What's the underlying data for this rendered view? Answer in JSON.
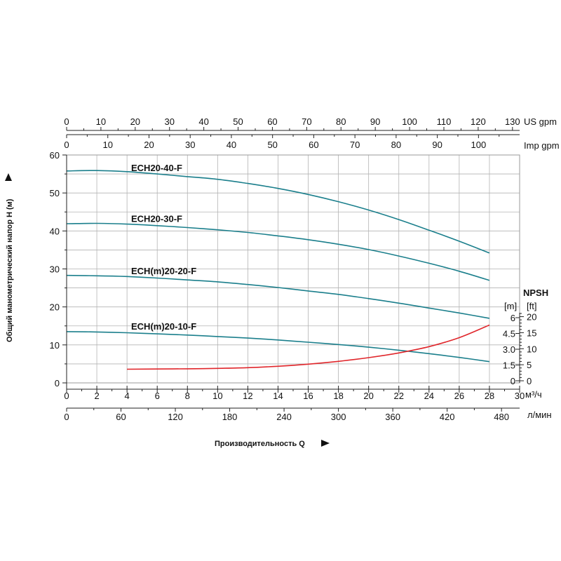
{
  "axes": {
    "us_gpm": {
      "label": "US gpm",
      "ticks": [
        0,
        10,
        20,
        30,
        40,
        50,
        60,
        70,
        80,
        90,
        100,
        110,
        120,
        130
      ]
    },
    "imp_gpm": {
      "label": "Imp gpm",
      "ticks": [
        0,
        10,
        20,
        30,
        40,
        50,
        60,
        70,
        80,
        90,
        100
      ]
    },
    "flow_m3h": {
      "label": "м³/ч",
      "ticks": [
        0,
        2,
        4,
        6,
        8,
        10,
        12,
        14,
        16,
        18,
        20,
        22,
        24,
        26,
        28,
        30
      ]
    },
    "flow_lmin": {
      "label": "л/мин",
      "ticks": [
        0,
        60,
        120,
        180,
        240,
        300,
        360,
        420,
        480
      ]
    },
    "head_m": {
      "label": "Общий манометрический напор H (м)",
      "ticks": [
        0,
        10,
        20,
        30,
        40,
        50,
        60
      ]
    },
    "x_title": "Производительность Q",
    "npsh": {
      "title": "NPSH",
      "unit_m": "[m]",
      "unit_ft": "[ft]",
      "ticks_m": [
        "0",
        "1.5",
        "3.0",
        "4.5",
        "6"
      ],
      "ticks_ft": [
        "0",
        "5",
        "10",
        "15",
        "20"
      ]
    }
  },
  "chart_data": {
    "type": "line",
    "xlabel": "Производительность Q",
    "ylabel": "Общий манометрический напор H (м)",
    "x_unit": "м³/ч",
    "xlim": [
      0,
      30
    ],
    "ylim": [
      0,
      60
    ],
    "grid": true,
    "series": [
      {
        "name": "ECH20-40-F",
        "color": "#1b7f8c",
        "x": [
          0,
          2,
          4,
          6,
          8,
          10,
          12,
          14,
          16,
          18,
          20,
          22,
          24,
          26,
          28
        ],
        "y": [
          55.8,
          55.9,
          55.6,
          55.0,
          54.3,
          53.6,
          52.5,
          51.2,
          49.6,
          47.7,
          45.5,
          43.0,
          40.2,
          37.3,
          34.2
        ]
      },
      {
        "name": "ECH20-30-F",
        "color": "#1b7f8c",
        "x": [
          0,
          2,
          4,
          6,
          8,
          10,
          12,
          14,
          16,
          18,
          20,
          22,
          24,
          26,
          28
        ],
        "y": [
          41.9,
          42.0,
          41.8,
          41.4,
          40.9,
          40.3,
          39.6,
          38.7,
          37.7,
          36.5,
          35.1,
          33.4,
          31.5,
          29.4,
          27.0
        ]
      },
      {
        "name": "ECH(m)20-20-F",
        "color": "#1b7f8c",
        "x": [
          0,
          2,
          4,
          6,
          8,
          10,
          12,
          14,
          16,
          18,
          20,
          22,
          24,
          26,
          28
        ],
        "y": [
          28.3,
          28.2,
          28.0,
          27.6,
          27.1,
          26.6,
          25.9,
          25.1,
          24.2,
          23.3,
          22.2,
          21.0,
          19.7,
          18.4,
          17.0
        ]
      },
      {
        "name": "ECH(m)20-10-F",
        "color": "#1b7f8c",
        "x": [
          0,
          2,
          4,
          6,
          8,
          10,
          12,
          14,
          16,
          18,
          20,
          22,
          24,
          26,
          28
        ],
        "y": [
          13.5,
          13.4,
          13.2,
          12.9,
          12.6,
          12.2,
          11.8,
          11.3,
          10.7,
          10.1,
          9.4,
          8.6,
          7.7,
          6.7,
          5.6
        ]
      },
      {
        "name": "NPSH",
        "color": "#e0262b",
        "axis": "npsh_m",
        "x": [
          4,
          6,
          8,
          10,
          12,
          14,
          16,
          18,
          20,
          22,
          24,
          26,
          28
        ],
        "y": [
          1.1,
          1.12,
          1.14,
          1.18,
          1.25,
          1.38,
          1.58,
          1.85,
          2.2,
          2.65,
          3.25,
          4.1,
          5.3
        ]
      }
    ]
  }
}
